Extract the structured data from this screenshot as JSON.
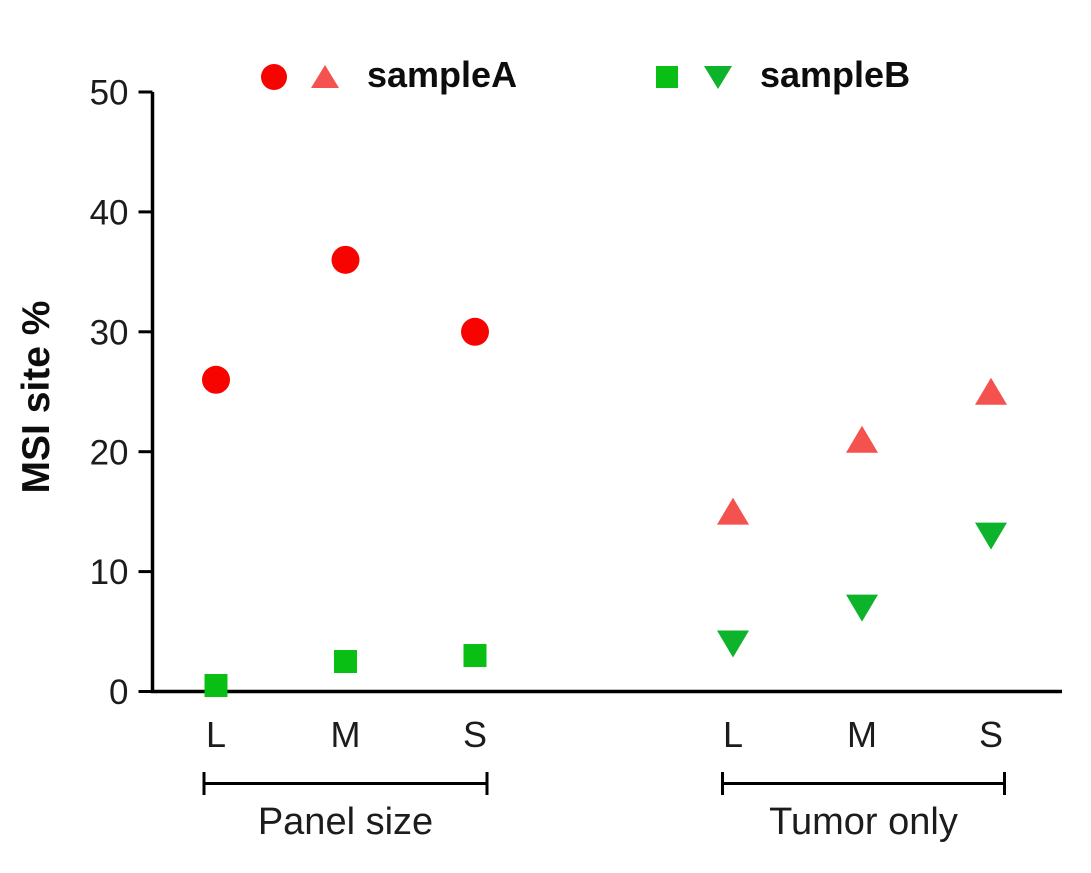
{
  "figure": {
    "ylabel": "MSI site %"
  },
  "legend": {
    "items": [
      {
        "label": "sampleA",
        "markers": [
          "circle",
          "triangle-up"
        ],
        "colors": [
          "#f80400",
          "#f4524e"
        ]
      },
      {
        "label": "sampleB",
        "markers": [
          "square",
          "triangle-down"
        ],
        "colors": [
          "#0abf13",
          "#0db32a"
        ]
      }
    ]
  },
  "chart_data": {
    "type": "scatter",
    "title": "",
    "xlabel": "",
    "ylabel": "MSI site %",
    "ylim": [
      0,
      50
    ],
    "yticks": [
      0,
      10,
      20,
      30,
      40,
      50
    ],
    "grid": "off",
    "legend_position": "top",
    "groups": [
      {
        "label": "Panel size",
        "categories": [
          "L",
          "M",
          "S"
        ]
      },
      {
        "label": "Tumor only",
        "categories": [
          "L",
          "M",
          "S"
        ]
      }
    ],
    "series": [
      {
        "name": "sampleA",
        "group": "Panel size",
        "marker": "circle",
        "color": "#f80400",
        "values": [
          26,
          36,
          30
        ]
      },
      {
        "name": "sampleB",
        "group": "Panel size",
        "marker": "square",
        "color": "#0abf13",
        "values": [
          0.5,
          2.5,
          3
        ]
      },
      {
        "name": "sampleA",
        "group": "Tumor only",
        "marker": "triangle-up",
        "color": "#f4524e",
        "values": [
          15,
          21,
          25
        ]
      },
      {
        "name": "sampleB",
        "group": "Tumor only",
        "marker": "triangle-down",
        "color": "#0db32a",
        "values": [
          4,
          7,
          13
        ]
      }
    ]
  }
}
